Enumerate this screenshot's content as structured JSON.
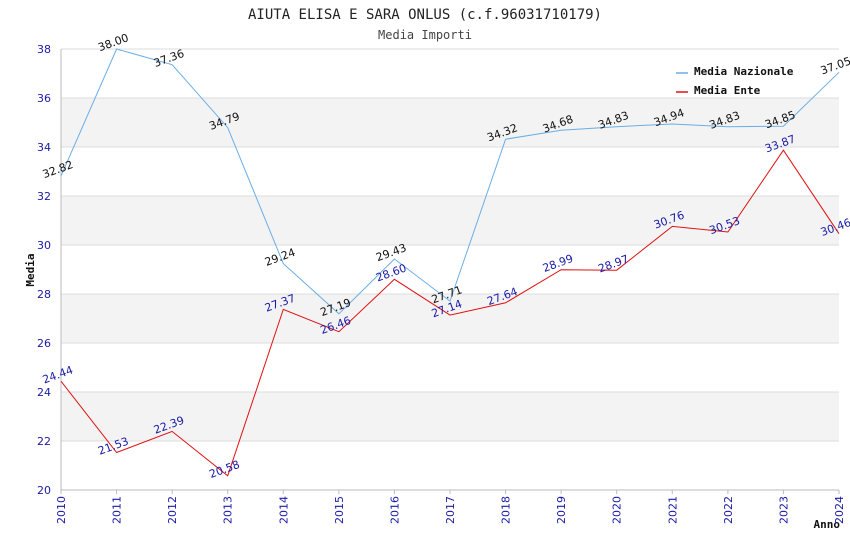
{
  "chart_data": {
    "type": "line",
    "title": "AIUTA ELISA E SARA ONLUS (c.f.96031710179)",
    "subtitle": "Media Importi",
    "xlabel": "Anno",
    "ylabel": "Media",
    "ylim": [
      20,
      38
    ],
    "yticks": [
      20,
      22,
      24,
      26,
      28,
      30,
      32,
      34,
      36,
      38
    ],
    "categories": [
      "2010",
      "2011",
      "2012",
      "2013",
      "2014",
      "2015",
      "2016",
      "2017",
      "2018",
      "2019",
      "2020",
      "2021",
      "2022",
      "2023",
      "2024"
    ],
    "grid": true,
    "legend_position": "top-right",
    "series": [
      {
        "name": "Media Nazionale",
        "color": "#6aaee6",
        "values": [
          32.82,
          38.0,
          37.36,
          34.79,
          29.24,
          27.19,
          29.43,
          27.71,
          34.32,
          34.68,
          34.83,
          34.94,
          34.83,
          34.85,
          37.05
        ],
        "labels": [
          "32.82",
          "38.00",
          "37.36",
          "34.79",
          "29.24",
          "27.19",
          "29.43",
          "27.71",
          "34.32",
          "34.68",
          "34.83",
          "34.94",
          "34.83",
          "34.85",
          "37.05"
        ]
      },
      {
        "name": "Media Ente",
        "color": "#e01010",
        "values": [
          24.44,
          21.53,
          22.39,
          20.58,
          27.37,
          26.46,
          28.6,
          27.14,
          27.64,
          28.99,
          28.97,
          30.76,
          30.53,
          33.87,
          30.46
        ],
        "labels": [
          "24.44",
          "21.53",
          "22.39",
          "20.58",
          "27.37",
          "26.46",
          "28.60",
          "27.14",
          "27.64",
          "28.99",
          "28.97",
          "30.76",
          "30.53",
          "33.87",
          "30.46"
        ]
      }
    ]
  }
}
